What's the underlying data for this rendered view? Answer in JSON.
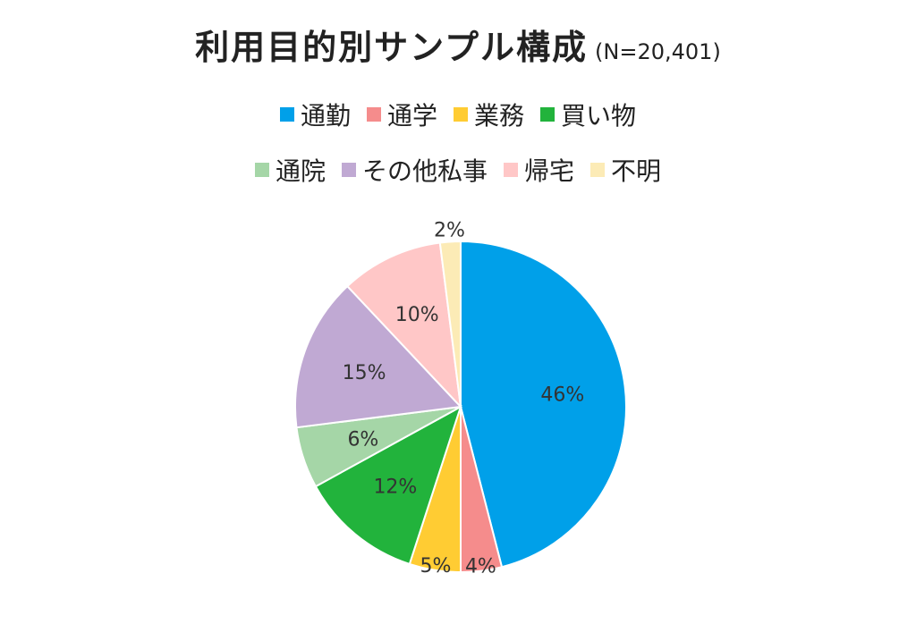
{
  "chart_data": {
    "type": "pie",
    "title": "利用目的別サンプル構成",
    "subtitle": "(N=20,401)",
    "legend_position": "top",
    "categories": [
      "通勤",
      "通学",
      "業務",
      "買い物",
      "通院",
      "その他私事",
      "帰宅",
      "不明"
    ],
    "values": [
      46,
      4,
      5,
      12,
      6,
      15,
      10,
      2
    ],
    "labels": [
      "46%",
      "4%",
      "5%",
      "12%",
      "6%",
      "15%",
      "10%",
      "2%"
    ],
    "colors": [
      "#00A0E9",
      "#F58C8C",
      "#FFCC33",
      "#22B33C",
      "#A5D6A7",
      "#C0A9D3",
      "#FFC7C7",
      "#FCEBB6"
    ],
    "start": "12 o'clock",
    "direction": "clockwise"
  }
}
